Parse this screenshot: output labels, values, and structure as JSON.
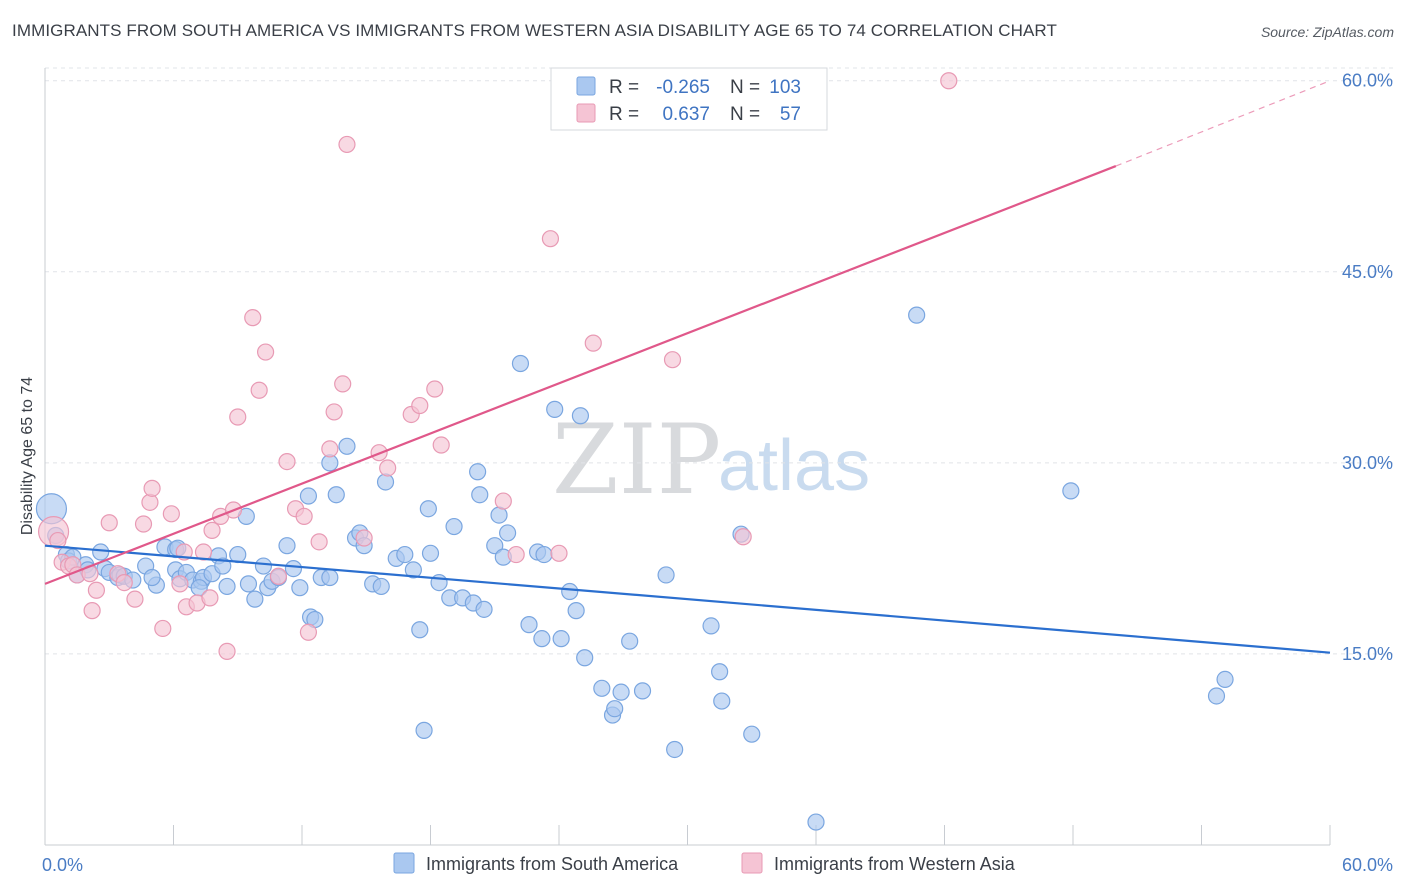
{
  "header": {
    "title": "IMMIGRANTS FROM SOUTH AMERICA VS IMMIGRANTS FROM WESTERN ASIA DISABILITY AGE 65 TO 74 CORRELATION CHART",
    "source": "Source: ZipAtlas.com"
  },
  "watermark": {
    "zip": "ZIP",
    "atlas": "atlas"
  },
  "stats": {
    "south_america": {
      "r_label": "R =",
      "r_value": "-0.265",
      "n_label": "N =",
      "n_value": "103"
    },
    "western_asia": {
      "r_label": "R =",
      "r_value": "0.637",
      "n_label": "N =",
      "n_value": "57"
    }
  },
  "chart_data": {
    "type": "scatter",
    "title": "IMMIGRANTS FROM SOUTH AMERICA VS IMMIGRANTS FROM WESTERN ASIA DISABILITY AGE 65 TO 74 CORRELATION CHART",
    "xlabel": "",
    "ylabel": "Disability Age 65 to 74",
    "xlim": [
      0,
      60
    ],
    "ylim": [
      0,
      61
    ],
    "x_tick_labels": [
      {
        "value": 0,
        "label": "0.0%"
      },
      {
        "value": 60,
        "label": "60.0%"
      }
    ],
    "y_tick_labels": [
      {
        "value": 15,
        "label": "15.0%"
      },
      {
        "value": 30,
        "label": "30.0%"
      },
      {
        "value": 45,
        "label": "45.0%"
      },
      {
        "value": 60,
        "label": "60.0%"
      }
    ],
    "x_minor_ticks": [
      0,
      6,
      12,
      18,
      24,
      30,
      36,
      42,
      48,
      54,
      60
    ],
    "grid": true,
    "legend_position": "bottom-center",
    "series": [
      {
        "name": "Immigrants from South America",
        "color": "#7aa6e0",
        "fill": "#aac8f0",
        "line_color": "#2b6fcf",
        "trend": {
          "x0": 0,
          "y0": 23.5,
          "x1": 60,
          "y1": 15.1
        },
        "points": [
          [
            0.3,
            26.4
          ],
          [
            0.5,
            24.3
          ],
          [
            1.0,
            22.8
          ],
          [
            1.1,
            22.3
          ],
          [
            1.3,
            22.6
          ],
          [
            1.5,
            21.2
          ],
          [
            1.9,
            22.0
          ],
          [
            2.0,
            21.6
          ],
          [
            2.6,
            23.0
          ],
          [
            2.8,
            21.7
          ],
          [
            3.0,
            21.4
          ],
          [
            3.4,
            21.0
          ],
          [
            3.5,
            21.2
          ],
          [
            3.7,
            21.1
          ],
          [
            4.1,
            20.8
          ],
          [
            4.7,
            21.9
          ],
          [
            5.2,
            20.4
          ],
          [
            5.0,
            21.0
          ],
          [
            5.6,
            23.4
          ],
          [
            6.1,
            23.2
          ],
          [
            6.2,
            23.3
          ],
          [
            6.1,
            21.6
          ],
          [
            6.3,
            20.9
          ],
          [
            6.6,
            21.4
          ],
          [
            6.9,
            20.8
          ],
          [
            7.3,
            20.7
          ],
          [
            7.4,
            21.0
          ],
          [
            7.2,
            20.2
          ],
          [
            7.8,
            21.3
          ],
          [
            8.1,
            22.7
          ],
          [
            8.3,
            21.9
          ],
          [
            8.5,
            20.3
          ],
          [
            9.0,
            22.8
          ],
          [
            9.4,
            25.8
          ],
          [
            9.5,
            20.5
          ],
          [
            9.8,
            19.3
          ],
          [
            10.2,
            21.9
          ],
          [
            10.4,
            20.2
          ],
          [
            10.6,
            20.7
          ],
          [
            10.9,
            21.0
          ],
          [
            11.3,
            23.5
          ],
          [
            11.6,
            21.7
          ],
          [
            11.9,
            20.2
          ],
          [
            12.3,
            27.4
          ],
          [
            12.4,
            17.9
          ],
          [
            12.6,
            17.7
          ],
          [
            12.9,
            21.0
          ],
          [
            13.3,
            21.0
          ],
          [
            13.3,
            30.0
          ],
          [
            13.6,
            27.5
          ],
          [
            14.1,
            31.3
          ],
          [
            14.5,
            24.1
          ],
          [
            14.7,
            24.5
          ],
          [
            14.9,
            23.5
          ],
          [
            15.3,
            20.5
          ],
          [
            15.7,
            20.3
          ],
          [
            15.9,
            28.5
          ],
          [
            16.4,
            22.5
          ],
          [
            16.8,
            22.8
          ],
          [
            17.2,
            21.6
          ],
          [
            17.5,
            16.9
          ],
          [
            17.9,
            26.4
          ],
          [
            18.0,
            22.9
          ],
          [
            18.4,
            20.6
          ],
          [
            18.9,
            19.4
          ],
          [
            19.1,
            25.0
          ],
          [
            19.5,
            19.4
          ],
          [
            20.0,
            19.0
          ],
          [
            20.2,
            29.3
          ],
          [
            20.3,
            27.5
          ],
          [
            20.5,
            18.5
          ],
          [
            21.0,
            23.5
          ],
          [
            21.2,
            25.9
          ],
          [
            21.4,
            22.6
          ],
          [
            21.6,
            24.5
          ],
          [
            22.2,
            37.8
          ],
          [
            22.6,
            17.3
          ],
          [
            23.0,
            23.0
          ],
          [
            23.2,
            16.2
          ],
          [
            23.3,
            22.8
          ],
          [
            23.8,
            34.2
          ],
          [
            24.1,
            16.2
          ],
          [
            24.5,
            19.9
          ],
          [
            24.8,
            18.4
          ],
          [
            25.0,
            33.7
          ],
          [
            25.2,
            14.7
          ],
          [
            26.0,
            12.3
          ],
          [
            26.5,
            10.2
          ],
          [
            26.6,
            10.7
          ],
          [
            26.9,
            12.0
          ],
          [
            27.3,
            16.0
          ],
          [
            27.9,
            12.1
          ],
          [
            29.0,
            21.2
          ],
          [
            29.4,
            7.5
          ],
          [
            31.1,
            17.2
          ],
          [
            31.5,
            13.6
          ],
          [
            31.6,
            11.3
          ],
          [
            32.5,
            24.4
          ],
          [
            33.0,
            8.7
          ],
          [
            36.0,
            1.8
          ],
          [
            40.7,
            41.6
          ],
          [
            47.9,
            27.8
          ],
          [
            54.7,
            11.7
          ],
          [
            55.1,
            13.0
          ],
          [
            17.7,
            9.0
          ]
        ]
      },
      {
        "name": "Immigrants from Western Asia",
        "color": "#e89ab4",
        "fill": "#f5c4d4",
        "line_color": "#e0588a",
        "trend": {
          "x0": 0,
          "y0": 20.5,
          "x1": 50,
          "y1": 53.3
        },
        "trend_dashed_to": {
          "x1": 60,
          "y1": 60.0
        },
        "points": [
          [
            0.4,
            24.6
          ],
          [
            0.6,
            23.9
          ],
          [
            0.8,
            22.2
          ],
          [
            1.1,
            21.9
          ],
          [
            1.3,
            22.0
          ],
          [
            1.5,
            21.2
          ],
          [
            2.1,
            21.3
          ],
          [
            2.2,
            18.4
          ],
          [
            2.4,
            20.0
          ],
          [
            3.0,
            25.3
          ],
          [
            3.4,
            21.3
          ],
          [
            3.7,
            20.6
          ],
          [
            4.2,
            19.3
          ],
          [
            4.6,
            25.2
          ],
          [
            4.9,
            26.9
          ],
          [
            5.0,
            28.0
          ],
          [
            5.5,
            17.0
          ],
          [
            5.9,
            26.0
          ],
          [
            6.3,
            20.5
          ],
          [
            6.5,
            23.0
          ],
          [
            6.6,
            18.7
          ],
          [
            7.1,
            19.0
          ],
          [
            7.4,
            23.0
          ],
          [
            7.7,
            19.4
          ],
          [
            7.8,
            24.7
          ],
          [
            8.2,
            25.8
          ],
          [
            8.5,
            15.2
          ],
          [
            8.8,
            26.3
          ],
          [
            9.0,
            33.6
          ],
          [
            9.7,
            41.4
          ],
          [
            10.0,
            35.7
          ],
          [
            10.3,
            38.7
          ],
          [
            10.9,
            21.1
          ],
          [
            11.3,
            30.1
          ],
          [
            11.7,
            26.4
          ],
          [
            12.1,
            25.8
          ],
          [
            12.3,
            16.7
          ],
          [
            12.8,
            23.8
          ],
          [
            13.3,
            31.1
          ],
          [
            13.5,
            34.0
          ],
          [
            13.9,
            36.2
          ],
          [
            14.1,
            55.0
          ],
          [
            14.9,
            24.1
          ],
          [
            15.6,
            30.8
          ],
          [
            16.0,
            29.6
          ],
          [
            17.1,
            33.8
          ],
          [
            17.5,
            34.5
          ],
          [
            18.2,
            35.8
          ],
          [
            18.5,
            31.4
          ],
          [
            21.4,
            27.0
          ],
          [
            22.0,
            22.8
          ],
          [
            23.6,
            47.6
          ],
          [
            24.0,
            22.9
          ],
          [
            25.6,
            39.4
          ],
          [
            29.3,
            38.1
          ],
          [
            32.6,
            24.2
          ],
          [
            42.2,
            60.0
          ]
        ]
      }
    ]
  },
  "legend_bottom": [
    {
      "label": "Immigrants from South America"
    },
    {
      "label": "Immigrants from Western Asia"
    }
  ]
}
